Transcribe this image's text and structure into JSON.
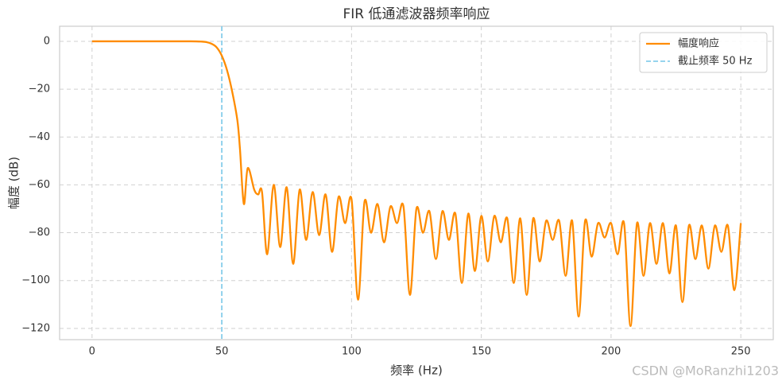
{
  "chart_data": {
    "type": "line",
    "title": "FIR 低通滤波器频率响应",
    "xlabel": "频率 (Hz)",
    "ylabel": "幅度 (dB)",
    "x": [
      0,
      10,
      20,
      30,
      38,
      42,
      44,
      46,
      48,
      50,
      52,
      54,
      56,
      57,
      58.5,
      60,
      62.5,
      64,
      65.5,
      67.5,
      70,
      72.5,
      75,
      77.5,
      80,
      82.5,
      85,
      87.5,
      90,
      92.5,
      95,
      97.5,
      100,
      102.5,
      105,
      107.5,
      110,
      112.5,
      115,
      117.5,
      120,
      122.5,
      125,
      127.5,
      130,
      132.5,
      135,
      137.5,
      140,
      142.5,
      145,
      147.5,
      150,
      152.5,
      155,
      157.5,
      160,
      162.5,
      165,
      167.5,
      170,
      172.5,
      175,
      177.5,
      180,
      182.5,
      185,
      187.5,
      190,
      192.5,
      195,
      197.5,
      200,
      202.5,
      205,
      207.5,
      210,
      212.5,
      215,
      217.5,
      220,
      222.5,
      225,
      227.5,
      230,
      232.5,
      235,
      237.5,
      240,
      242.5,
      245,
      247.5,
      250
    ],
    "series": [
      {
        "name": "幅度响应",
        "color": "#ff8c00",
        "values": [
          0,
          0,
          0,
          0,
          0,
          -0.1,
          -0.3,
          -1,
          -2.5,
          -6,
          -12,
          -21,
          -33,
          -45,
          -68,
          -53,
          -62,
          -64,
          -63,
          -89,
          -60,
          -86,
          -61,
          -93,
          -62,
          -83,
          -63,
          -81,
          -64,
          -88,
          -65,
          -76,
          -66,
          -108,
          -67,
          -80,
          -68,
          -84,
          -69,
          -76,
          -69,
          -106,
          -70,
          -80,
          -71,
          -91,
          -71,
          -83,
          -72,
          -101,
          -72,
          -96,
          -73,
          -92,
          -73,
          -84,
          -74,
          -101,
          -74,
          -106,
          -74,
          -92,
          -75,
          -83,
          -75,
          -98,
          -75,
          -115,
          -75,
          -90,
          -76,
          -82,
          -76,
          -89,
          -76,
          -119,
          -76,
          -98,
          -76,
          -93,
          -76,
          -97,
          -77,
          -109,
          -77,
          -91,
          -77,
          -95,
          -77,
          -88,
          -77,
          -104,
          -76
        ]
      }
    ],
    "vlines": [
      {
        "name": "截止频率 50 Hz",
        "x": 50,
        "color": "#87ceeb"
      }
    ],
    "xlim": [
      -12.5,
      262.5
    ],
    "ylim": [
      -124.7,
      6.3
    ],
    "xticks": [
      0,
      50,
      100,
      150,
      200,
      250
    ],
    "yticks": [
      0,
      {
        "value": -20,
        "label": "−20"
      },
      {
        "value": -40,
        "label": "−40"
      },
      {
        "value": -60,
        "label": "−60"
      },
      {
        "value": -80,
        "label": "−80"
      },
      {
        "value": -100,
        "label": "−100"
      },
      {
        "value": -120,
        "label": "−120"
      }
    ],
    "grid": true,
    "legend": "upper right",
    "watermark": "CSDN @MoRanzhi1203"
  }
}
